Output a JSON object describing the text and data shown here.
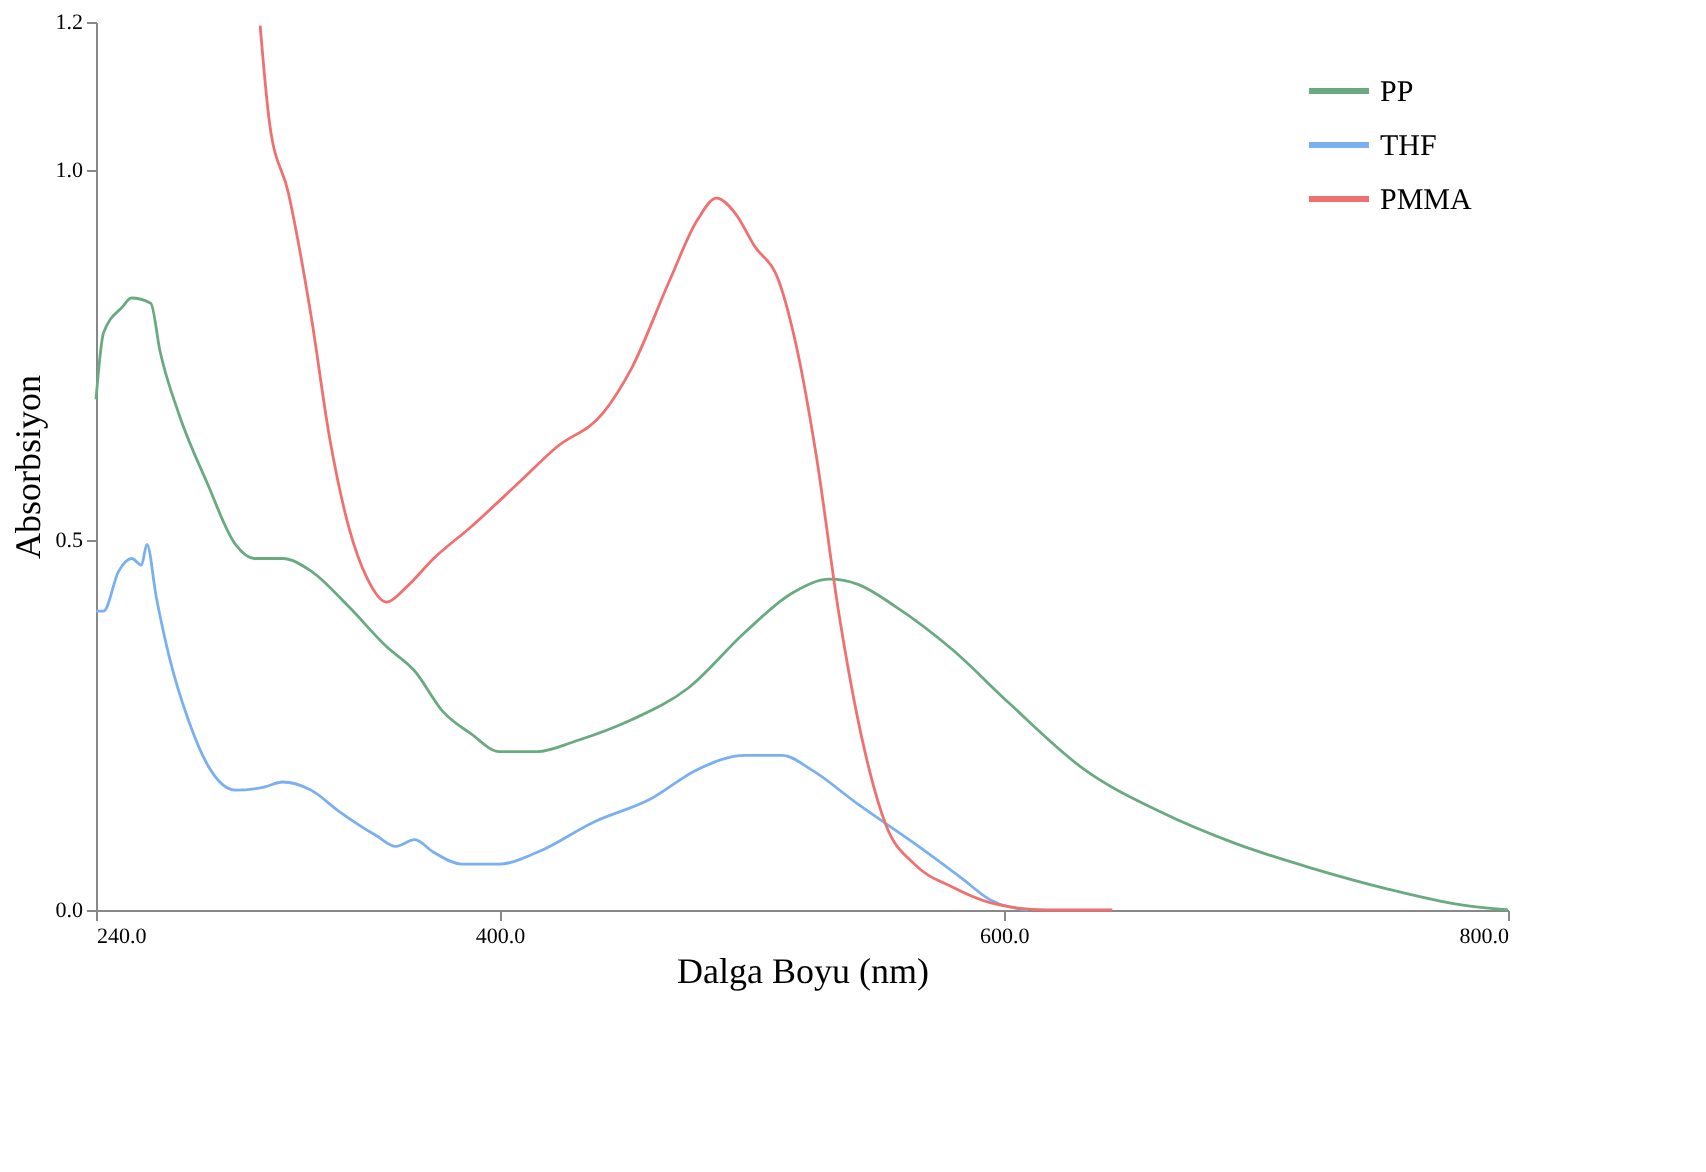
{
  "chart_data": {
    "type": "line",
    "xlabel": "Dalga Boyu (nm)",
    "ylabel": "Absorbsiyon",
    "xlim": [
      240,
      800
    ],
    "xticks": [
      {
        "value": 240,
        "label": "240.0"
      },
      {
        "value": 400,
        "label": "400.0"
      },
      {
        "value": 600,
        "label": "600.0"
      },
      {
        "value": 800,
        "label": "800.0"
      }
    ],
    "ylim": [
      0,
      1.2
    ],
    "yticks": [
      {
        "value": 0,
        "label": "0.0"
      },
      0.5,
      {
        "value": 1,
        "label": "1.0"
      },
      1.2
    ],
    "grid": false,
    "legend": "top right",
    "line_style": "solid",
    "series": [
      {
        "name": "PP",
        "color": "#6aaa80",
        "x": [
          240,
          243,
          250.5,
          254,
          261.7,
          265.4,
          272.9,
          284.1,
          295.3,
          302.8,
          314,
          325.3,
          340.2,
          355.2,
          366.4,
          377.6,
          388.8,
          400,
          415,
          430,
          452.4,
          474.9,
          497.3,
          516,
          531,
          542.2,
          557.1,
          579.6,
          602,
          631.9,
          661.9,
          691.8,
          721.7,
          751.6,
          781.5,
          800
        ],
        "values": [
          0.69,
          0.78,
          0.815,
          0.827,
          0.82,
          0.755,
          0.67,
          0.577,
          0.494,
          0.475,
          0.475,
          0.458,
          0.41,
          0.356,
          0.323,
          0.268,
          0.238,
          0.214,
          0.214,
          0.228,
          0.257,
          0.3,
          0.375,
          0.428,
          0.447,
          0.44,
          0.41,
          0.352,
          0.28,
          0.19,
          0.133,
          0.09,
          0.057,
          0.029,
          0.007,
          0
        ]
      },
      {
        "name": "THF",
        "color": "#7ab0f0",
        "x": [
          240,
          243,
          249,
          254.2,
          258,
          260.2,
          263.9,
          269.2,
          276.6,
          284.1,
          295.3,
          306.6,
          314,
          325.3,
          336.5,
          351.4,
          358.9,
          366.4,
          373.9,
          385.1,
          400,
          415,
          437.5,
          459.9,
          478.6,
          497.3,
          512.3,
          523.5,
          542.2,
          564.6,
          583.3,
          594.5,
          609.5
        ],
        "values": [
          0.404,
          0.404,
          0.458,
          0.475,
          0.466,
          0.494,
          0.423,
          0.34,
          0.257,
          0.197,
          0.162,
          0.166,
          0.173,
          0.162,
          0.133,
          0.1,
          0.086,
          0.095,
          0.078,
          0.062,
          0.062,
          0.078,
          0.119,
          0.15,
          0.19,
          0.209,
          0.209,
          0.19,
          0.143,
          0.09,
          0.043,
          0.014,
          0
        ]
      },
      {
        "name": "PMMA",
        "color": "#f07070",
        "x": [
          305.1,
          308.8,
          316.3,
          325.3,
          332.7,
          340.2,
          347.7,
          355.2,
          362.7,
          373.9,
          388.8,
          407.5,
          422.5,
          441.2,
          452.4,
          467.4,
          478.6,
          486.1,
          493.6,
          501,
          510.8,
          518.2,
          525.7,
          534.7,
          543.7,
          553.4,
          564.6,
          579.6,
          594.5,
          617,
          643.1
        ],
        "values": [
          1.195,
          1.064,
          0.969,
          0.803,
          0.637,
          0.518,
          0.447,
          0.416,
          0.435,
          0.475,
          0.518,
          0.577,
          0.625,
          0.672,
          0.732,
          0.85,
          0.933,
          0.962,
          0.941,
          0.898,
          0.85,
          0.755,
          0.613,
          0.399,
          0.233,
          0.114,
          0.062,
          0.031,
          0.01,
          0,
          0
        ]
      }
    ]
  }
}
